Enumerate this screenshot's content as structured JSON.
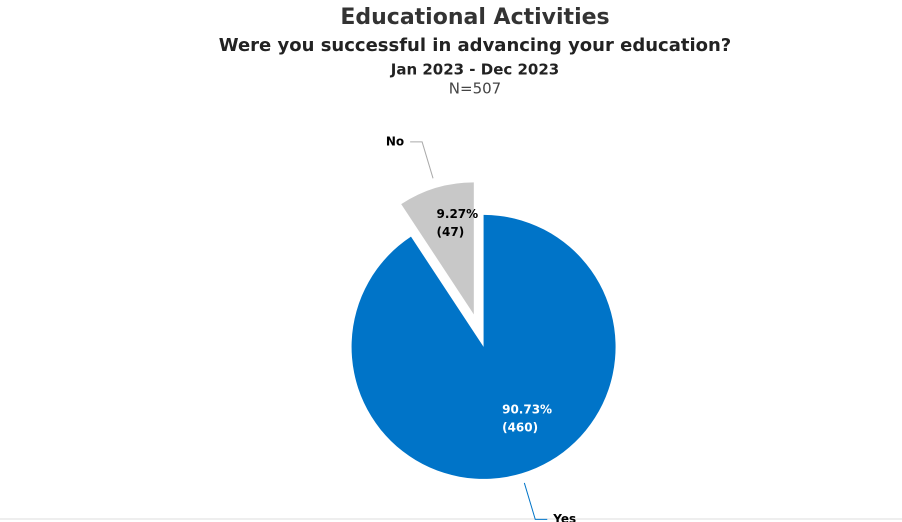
{
  "chart_data": {
    "type": "pie",
    "title": "Educational Activities",
    "subtitle": "Were you successful in advancing your education?",
    "period": "Jan 2023 - Dec 2023",
    "sample": "N=507",
    "categories": [
      "Yes",
      "No"
    ],
    "values": [
      90.73,
      9.27
    ],
    "value_labels": [
      "90.73%",
      "9.27%"
    ],
    "counts": [
      460,
      47
    ],
    "count_labels": [
      "(460)",
      "(47)"
    ],
    "colors": [
      "#0074c8",
      "#c8c8c8"
    ],
    "label_colors": [
      "#ffffff",
      "#000000"
    ]
  }
}
